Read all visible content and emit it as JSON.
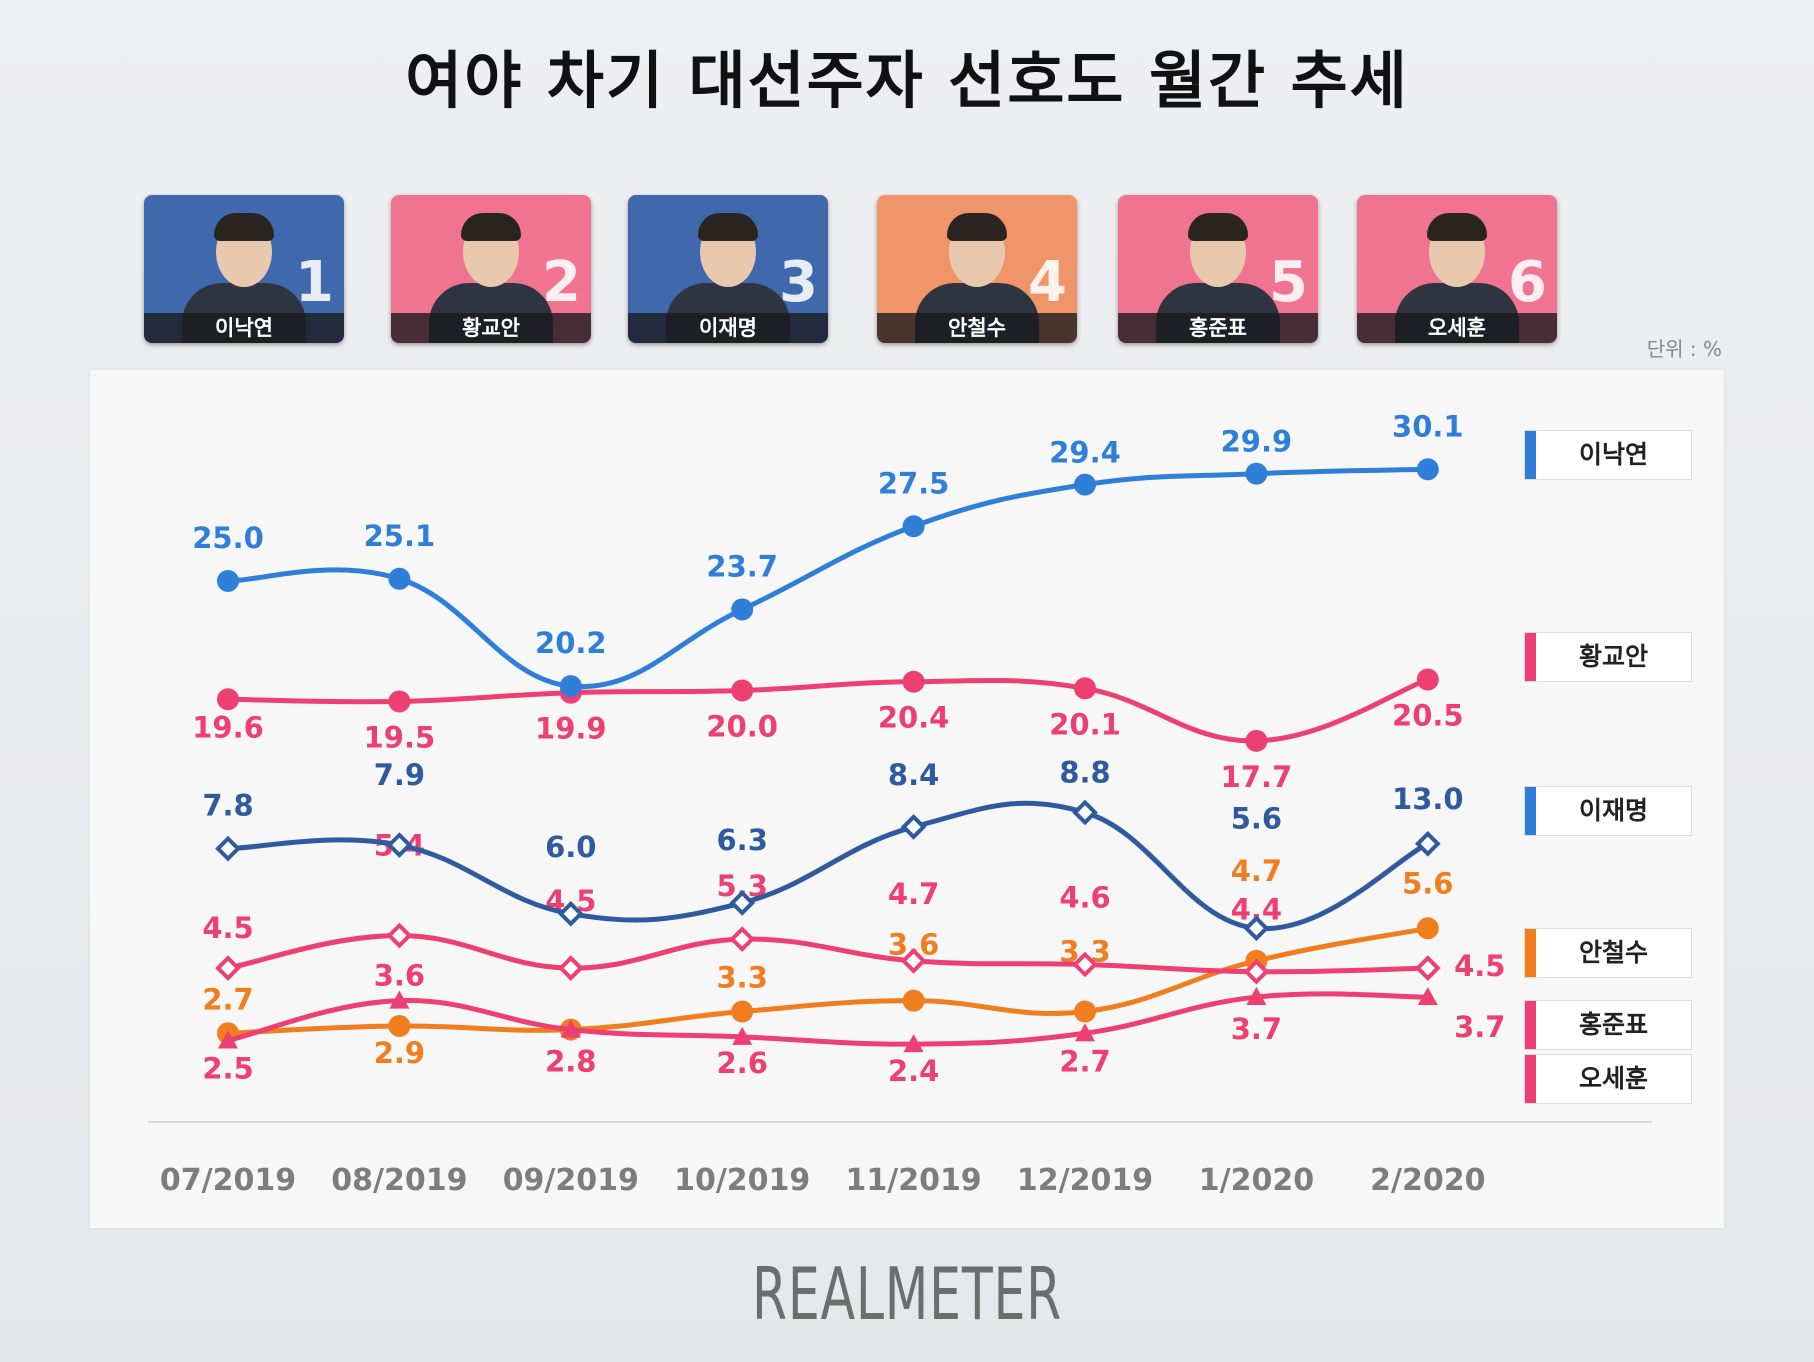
{
  "title": "여야 차기 대선주자 선호도 월간 추세",
  "unit": "단위 : %",
  "brand": "REALMETER",
  "candidates": [
    {
      "rank": "1",
      "name": "이낙연",
      "bg": "#3f68ad"
    },
    {
      "rank": "2",
      "name": "황교안",
      "bg": "#f0748f"
    },
    {
      "rank": "3",
      "name": "이재명",
      "bg": "#3f68ad"
    },
    {
      "rank": "4",
      "name": "안철수",
      "bg": "#f0956a"
    },
    {
      "rank": "5",
      "name": "홍준표",
      "bg": "#f0748f"
    },
    {
      "rank": "6",
      "name": "오세훈",
      "bg": "#f0748f"
    }
  ],
  "chart_data": {
    "type": "line",
    "x": [
      "07/2019",
      "08/2019",
      "09/2019",
      "10/2019",
      "11/2019",
      "12/2019",
      "1/2020",
      "2/2020"
    ],
    "series": [
      {
        "name": "이낙연",
        "color": "#2f7ed8",
        "marker": "circle",
        "values": [
          25.0,
          25.1,
          20.2,
          23.7,
          27.5,
          29.4,
          29.9,
          30.1
        ],
        "labels": [
          "25.0",
          "25.1",
          "20.2",
          "23.7",
          "27.5",
          "29.4",
          "29.9",
          "30.1"
        ]
      },
      {
        "name": "황교안",
        "color": "#ee3f72",
        "marker": "circle",
        "values": [
          19.6,
          19.5,
          19.9,
          20.0,
          20.4,
          20.1,
          17.7,
          20.5
        ],
        "labels": [
          "19.6",
          "19.5",
          "19.9",
          "20.0",
          "20.4",
          "20.1",
          "17.7",
          "20.5"
        ]
      },
      {
        "name": "이재명",
        "color": "#2f5b9e",
        "marker": "diamond",
        "values": [
          7.8,
          7.9,
          6.0,
          6.3,
          8.4,
          8.8,
          5.6,
          13.0
        ],
        "labels": [
          "7.8",
          "7.9",
          "6.0",
          "6.3",
          "8.4",
          "8.8",
          "5.6",
          "13.0"
        ]
      },
      {
        "name": "안철수",
        "color": "#f07d1e",
        "marker": "circle",
        "values": [
          2.7,
          2.9,
          2.8,
          3.3,
          3.6,
          3.3,
          4.7,
          5.6
        ],
        "labels": [
          "2.7",
          "2.9",
          "2.8",
          "3.3",
          "3.6",
          "3.3",
          "4.7",
          "5.6"
        ]
      },
      {
        "name": "홍준표",
        "color": "#ee3f72",
        "marker": "diamond",
        "values": [
          4.5,
          5.4,
          4.5,
          5.3,
          4.7,
          4.6,
          4.4,
          4.5
        ],
        "labels": [
          "4.5",
          "5.4",
          "4.5",
          "5.3",
          "4.7",
          "4.6",
          "4.4",
          "4.5"
        ]
      },
      {
        "name": "오세훈",
        "color": "#ee3f72",
        "marker": "triangle",
        "values": [
          2.5,
          3.6,
          2.8,
          2.6,
          2.4,
          2.7,
          3.7,
          3.7
        ],
        "labels": [
          "2.5",
          "3.6",
          "2.8",
          "2.6",
          "2.4",
          "2.7",
          "3.7",
          "3.7"
        ]
      }
    ],
    "legend": [
      "이낙연",
      "황교안",
      "이재명",
      "안철수",
      "홍준표",
      "오세훈"
    ],
    "legend_position": "right",
    "grid": false
  }
}
